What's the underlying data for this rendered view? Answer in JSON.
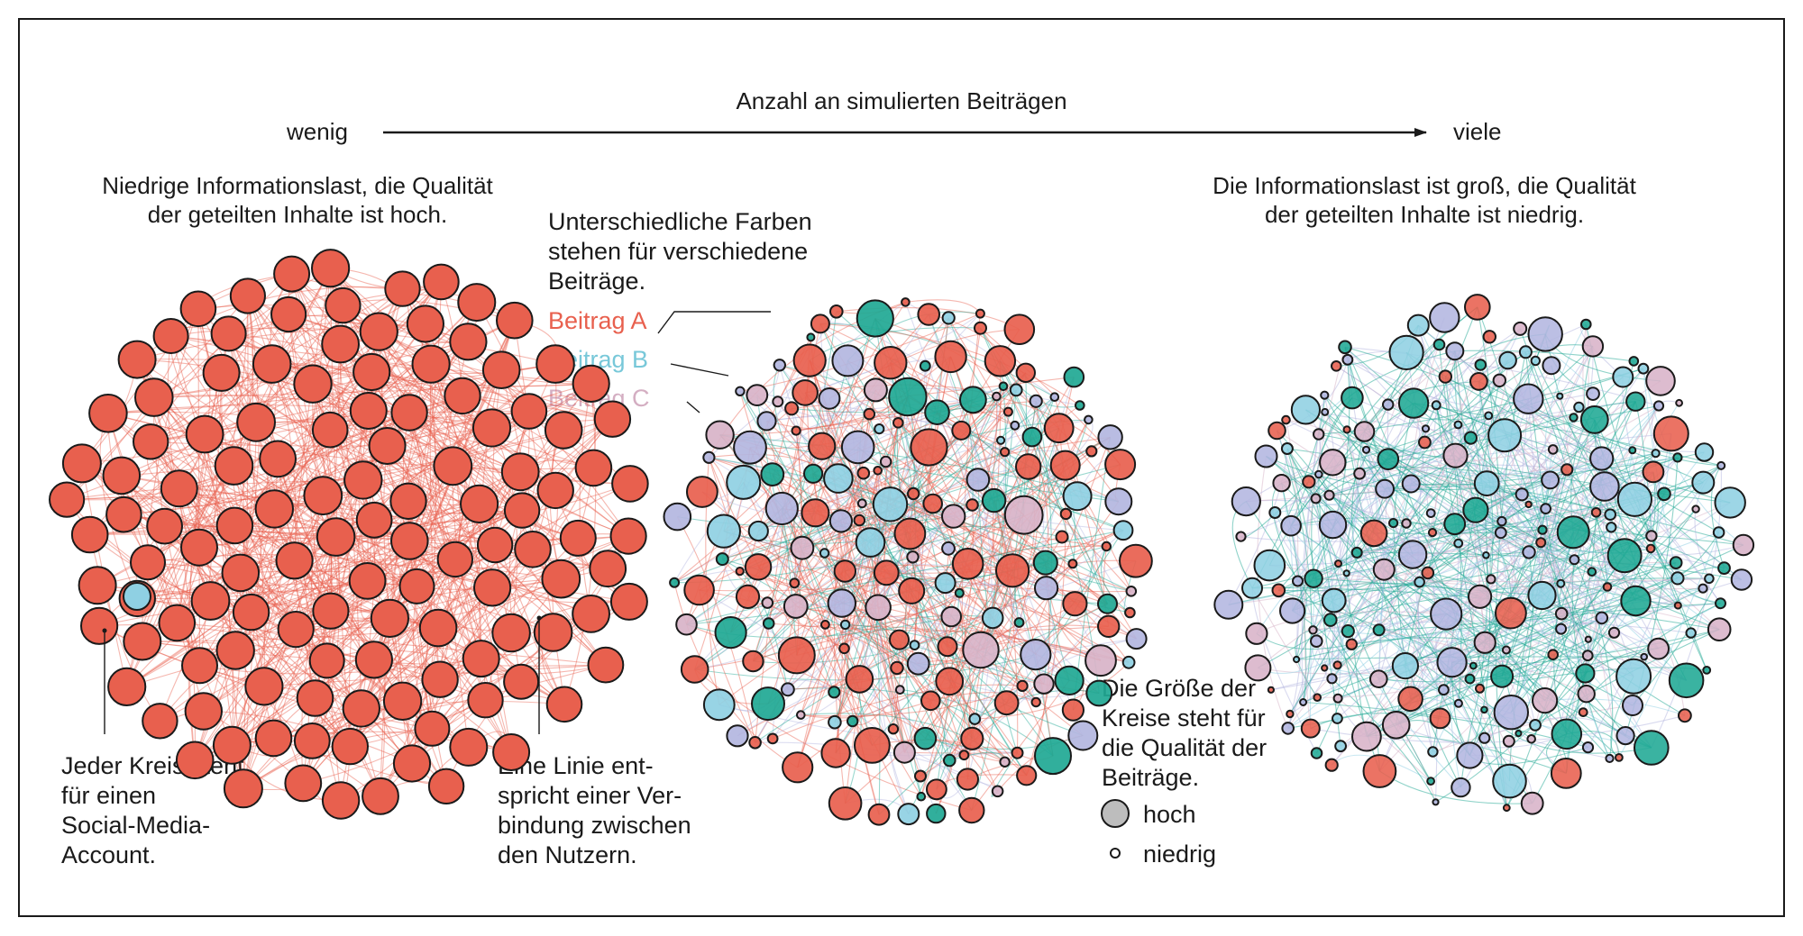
{
  "header": {
    "title": "Anzahl an simulierten Beiträgen",
    "low": "wenig",
    "high": "viele"
  },
  "panels": {
    "left_description": [
      "Niedrige Informationslast, die Qualität",
      "der geteilten Inhalte ist hoch."
    ],
    "right_description": [
      "Die Informationslast ist groß, die Qualität",
      "der geteilten Inhalte ist niedrig."
    ]
  },
  "annotations": {
    "colors_note": [
      "Unterschiedliche Farben",
      "stehen für verschiedene",
      "Beiträge."
    ],
    "circle_note": [
      "Jeder Kreis steht",
      "für einen",
      "Social-Media-",
      "Account."
    ],
    "line_note": [
      "Eine Linie ent-",
      "spricht einer Ver-",
      "bindung zwischen",
      "den Nutzern."
    ],
    "size_note": [
      "Die Größe der",
      "Kreise steht für",
      "die Qualität der",
      "Beiträge."
    ]
  },
  "legend": {
    "post_a": "Beitrag A",
    "post_b": "Beitrag B",
    "post_c": "Beitrag C",
    "size_high": "hoch",
    "size_low": "niedrig"
  },
  "colors": {
    "post_a": "#e8604e",
    "post_b": "#8fd0e3",
    "post_c": "#d8b3c8",
    "post_d": "#1fa894",
    "post_e": "#b3b6e0",
    "edge": "#e8604e",
    "neutral": "#bdbdbd",
    "stroke": "#1a1a1a"
  }
}
